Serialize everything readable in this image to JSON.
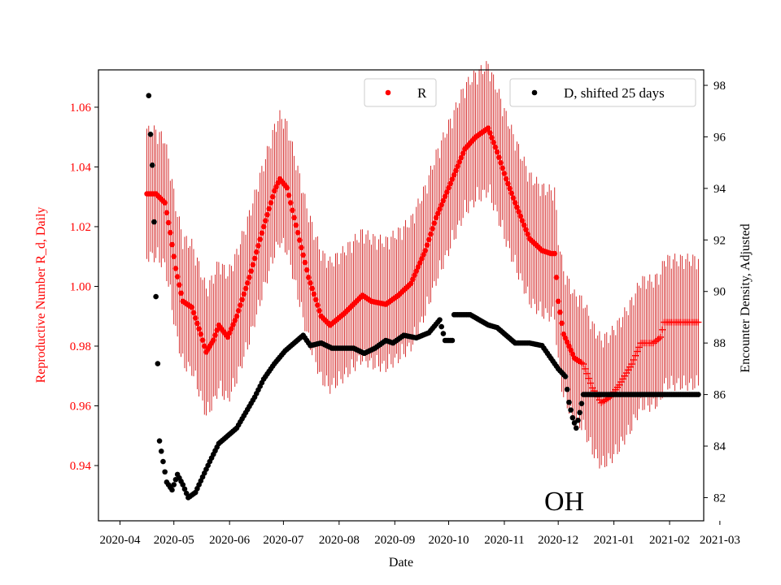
{
  "chart_data": {
    "type": "scatter",
    "state_label": "OH",
    "xlabel": "Date",
    "ylabel_left": "Reproductive Number R_d, Daily",
    "ylabel_right": "Encounter Density, Adjusted",
    "x_range_days": [
      -12,
      325
    ],
    "ylim_left": [
      0.9215,
      1.0725
    ],
    "ylim_right": [
      81.1,
      98.6
    ],
    "x_ticks": [
      {
        "day": 0,
        "label": "2020-04"
      },
      {
        "day": 30,
        "label": "2020-05"
      },
      {
        "day": 61,
        "label": "2020-06"
      },
      {
        "day": 91,
        "label": "2020-07"
      },
      {
        "day": 122,
        "label": "2020-08"
      },
      {
        "day": 153,
        "label": "2020-09"
      },
      {
        "day": 183,
        "label": "2020-10"
      },
      {
        "day": 214,
        "label": "2020-11"
      },
      {
        "day": 244,
        "label": "2020-12"
      },
      {
        "day": 275,
        "label": "2021-01"
      },
      {
        "day": 306,
        "label": "2021-02"
      },
      {
        "day": 334,
        "label": "2021-03"
      }
    ],
    "y_ticks_left": [
      "0.94",
      "0.96",
      "0.98",
      "1.00",
      "1.02",
      "1.04",
      "1.06"
    ],
    "y_ticks_right": [
      "82",
      "84",
      "86",
      "88",
      "90",
      "92",
      "94",
      "96",
      "98"
    ],
    "legend": [
      {
        "label": "R",
        "color": "#ff0000",
        "position": "upper-center"
      },
      {
        "label": "D, shifted 25 days",
        "color": "#000000",
        "position": "upper-right"
      }
    ],
    "series": [
      {
        "name": "R",
        "axis": "left",
        "color": "#ff0000",
        "marker": "dot then plus",
        "marker_switch_day": 257,
        "error_bar_color": "#cc0000",
        "x_start_day": 15,
        "x_end_day": 322,
        "knots": [
          [
            15,
            1.031
          ],
          [
            20,
            1.031
          ],
          [
            25,
            1.028
          ],
          [
            28,
            1.018
          ],
          [
            31,
            1.006
          ],
          [
            35,
            0.995
          ],
          [
            40,
            0.993
          ],
          [
            45,
            0.984
          ],
          [
            48,
            0.978
          ],
          [
            52,
            0.982
          ],
          [
            55,
            0.987
          ],
          [
            60,
            0.983
          ],
          [
            65,
            0.99
          ],
          [
            72,
            1.003
          ],
          [
            80,
            1.02
          ],
          [
            86,
            1.032
          ],
          [
            89,
            1.036
          ],
          [
            93,
            1.033
          ],
          [
            99,
            1.018
          ],
          [
            105,
            1.003
          ],
          [
            112,
            0.99
          ],
          [
            117,
            0.987
          ],
          [
            125,
            0.991
          ],
          [
            135,
            0.997
          ],
          [
            140,
            0.995
          ],
          [
            148,
            0.994
          ],
          [
            155,
            0.997
          ],
          [
            162,
            1.001
          ],
          [
            170,
            1.012
          ],
          [
            176,
            1.023
          ],
          [
            183,
            1.033
          ],
          [
            192,
            1.046
          ],
          [
            198,
            1.05
          ],
          [
            205,
            1.053
          ],
          [
            210,
            1.045
          ],
          [
            215,
            1.036
          ],
          [
            220,
            1.028
          ],
          [
            228,
            1.016
          ],
          [
            235,
            1.012
          ],
          [
            240,
            1.011
          ],
          [
            242,
            1.011
          ],
          [
            244,
            0.995
          ],
          [
            247,
            0.984
          ],
          [
            250,
            0.98
          ],
          [
            253,
            0.976
          ],
          [
            258,
            0.974
          ],
          [
            263,
            0.966
          ],
          [
            268,
            0.961
          ],
          [
            273,
            0.963
          ],
          [
            278,
            0.967
          ],
          [
            285,
            0.974
          ],
          [
            290,
            0.981
          ],
          [
            297,
            0.981
          ],
          [
            301,
            0.983
          ],
          [
            303,
            0.988
          ]
        ],
        "error_halfwidth": 0.02
      },
      {
        "name": "D, shifted 25 days",
        "axis": "right",
        "color": "#000000",
        "marker": "dot",
        "x_start_day": 16,
        "x_end_day": 322,
        "knots": [
          [
            16,
            97.6
          ],
          [
            17,
            96.1
          ],
          [
            18,
            94.9
          ],
          [
            19,
            92.7
          ],
          [
            20,
            89.8
          ],
          [
            21,
            87.2
          ],
          [
            22,
            84.2
          ],
          [
            24,
            83.4
          ],
          [
            26,
            82.6
          ],
          [
            29,
            82.3
          ],
          [
            32,
            82.9
          ],
          [
            35,
            82.5
          ],
          [
            38,
            82.0
          ],
          [
            42,
            82.2
          ],
          [
            46,
            82.8
          ],
          [
            50,
            83.4
          ],
          [
            55,
            84.1
          ],
          [
            60,
            84.4
          ],
          [
            65,
            84.7
          ],
          [
            70,
            85.3
          ],
          [
            75,
            85.9
          ],
          [
            80,
            86.6
          ],
          [
            86,
            87.2
          ],
          [
            92,
            87.7
          ],
          [
            97,
            88.0
          ],
          [
            102,
            88.3
          ],
          [
            106,
            87.9
          ],
          [
            112,
            88.0
          ],
          [
            118,
            87.8
          ],
          [
            124,
            87.8
          ],
          [
            130,
            87.8
          ],
          [
            136,
            87.6
          ],
          [
            142,
            87.8
          ],
          [
            148,
            88.1
          ],
          [
            152,
            88.0
          ],
          [
            158,
            88.3
          ],
          [
            165,
            88.2
          ],
          [
            172,
            88.4
          ],
          [
            178,
            88.9
          ],
          [
            181,
            88.1
          ],
          [
            185,
            88.1
          ],
          [
            186,
            89.1
          ],
          [
            195,
            89.1
          ],
          [
            200,
            88.9
          ],
          [
            205,
            88.7
          ],
          [
            210,
            88.6
          ],
          [
            215,
            88.3
          ],
          [
            220,
            88.0
          ],
          [
            228,
            88.0
          ],
          [
            235,
            87.9
          ],
          [
            240,
            87.4
          ],
          [
            244,
            87.0
          ],
          [
            248,
            86.7
          ],
          [
            250,
            85.7
          ],
          [
            252,
            85.1
          ],
          [
            254,
            84.7
          ],
          [
            256,
            85.3
          ],
          [
            258,
            86.0
          ],
          [
            290,
            86.0
          ],
          [
            322,
            86.0
          ]
        ]
      }
    ]
  }
}
